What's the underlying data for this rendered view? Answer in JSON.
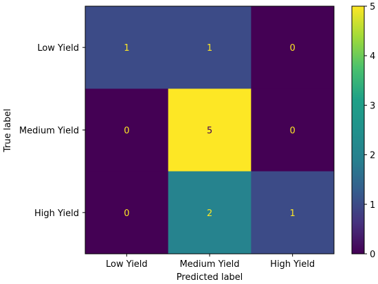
{
  "chart_data": {
    "type": "heatmap",
    "title": "",
    "xlabel": "Predicted label",
    "ylabel": "True label",
    "x_categories": [
      "Low Yield",
      "Medium Yield",
      "High Yield"
    ],
    "y_categories": [
      "Low Yield",
      "Medium Yield",
      "High Yield"
    ],
    "matrix": [
      [
        1,
        1,
        0
      ],
      [
        0,
        5,
        0
      ],
      [
        0,
        2,
        1
      ]
    ],
    "colormap": "viridis",
    "colorbar": {
      "min": 0,
      "max": 5,
      "ticks": [
        0,
        1,
        2,
        3,
        4,
        5
      ]
    },
    "annotation_colors": {
      "on_dark": "#fde725",
      "on_light": "#440154"
    },
    "grid": false
  }
}
